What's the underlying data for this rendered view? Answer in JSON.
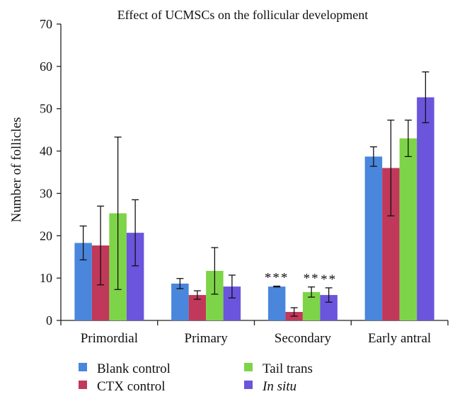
{
  "chart_data": {
    "type": "bar",
    "title": "Effect of UCMSCs on the follicular development",
    "ylabel": "Number of follicles",
    "xlabel": "",
    "ylim": [
      0,
      70
    ],
    "yticks": [
      0,
      10,
      20,
      30,
      40,
      50,
      60,
      70
    ],
    "categories": [
      "Primordial",
      "Primary",
      "Secondary",
      "Early antral"
    ],
    "series": [
      {
        "name": "Blank control",
        "color": "#4a86dc",
        "values": [
          18.3,
          8.7,
          8.0,
          38.7
        ],
        "errors": [
          4.0,
          1.2,
          0.1,
          2.3
        ]
      },
      {
        "name": "CTX control",
        "color": "#c0385a",
        "values": [
          17.7,
          6.0,
          2.0,
          36.0
        ],
        "errors": [
          9.3,
          1.0,
          1.0,
          11.3
        ]
      },
      {
        "name": "Tail trans",
        "color": "#7ed448",
        "values": [
          25.3,
          11.7,
          6.7,
          43.0
        ],
        "errors": [
          18.0,
          5.5,
          1.2,
          4.3
        ]
      },
      {
        "name": "In situ",
        "color": "#6a55dc",
        "values": [
          20.7,
          8.0,
          6.0,
          52.7
        ],
        "errors": [
          7.8,
          2.7,
          1.7,
          6.0
        ]
      }
    ],
    "annotations": [
      {
        "category": "Secondary",
        "series": "Blank control",
        "text": "***"
      },
      {
        "category": "Secondary",
        "series": "Tail trans",
        "text": "**"
      },
      {
        "category": "Secondary",
        "series": "In situ",
        "text": "**"
      }
    ],
    "legend_position": "bottom"
  }
}
